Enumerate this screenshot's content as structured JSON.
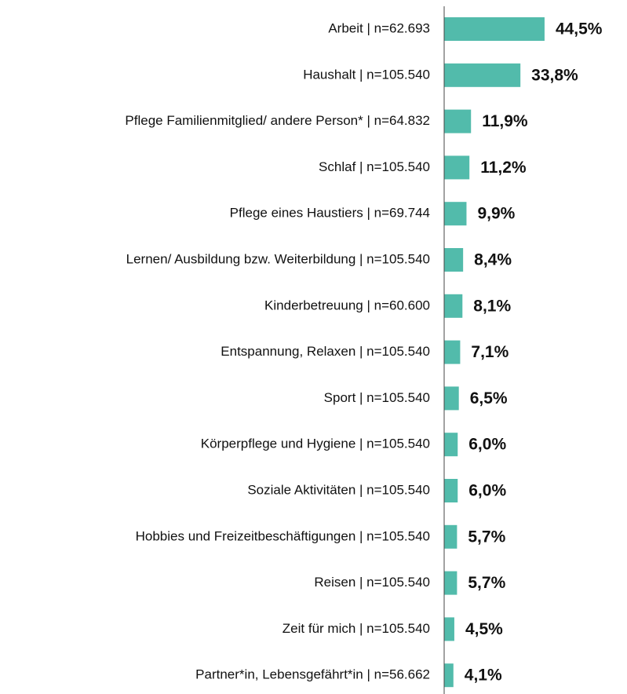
{
  "chart_data": {
    "type": "barh",
    "categories": [
      "Arbeit | n=62.693",
      "Haushalt | n=105.540",
      "Pflege Familienmitglied/ andere Person* | n=64.832",
      "Schlaf | n=105.540",
      "Pflege eines Haustiers | n=69.744",
      "Lernen/ Ausbildung bzw. Weiterbildung | n=105.540",
      "Kinderbetreuung | n=60.600",
      "Entspannung, Relaxen | n=105.540",
      "Sport | n=105.540",
      "Körperpflege und Hygiene | n=105.540",
      "Soziale Aktivitäten | n=105.540",
      "Hobbies und Freizeitbeschäftigungen | n=105.540",
      "Reisen | n=105.540",
      "Zeit für mich | n=105.540",
      "Partner*in, Lebensgefährt*in | n=56.662"
    ],
    "values": [
      44.5,
      33.8,
      11.9,
      11.2,
      9.9,
      8.4,
      8.1,
      7.1,
      6.5,
      6.0,
      6.0,
      5.7,
      5.7,
      4.5,
      4.1
    ],
    "value_labels": [
      "44,5%",
      "33,8%",
      "11,9%",
      "11,2%",
      "9,9%",
      "8,4%",
      "8,1%",
      "7,1%",
      "6,5%",
      "6,0%",
      "6,0%",
      "5,7%",
      "5,7%",
      "4,5%",
      "4,1%"
    ],
    "color": "#52bbab",
    "xlim": [
      0,
      80
    ]
  }
}
